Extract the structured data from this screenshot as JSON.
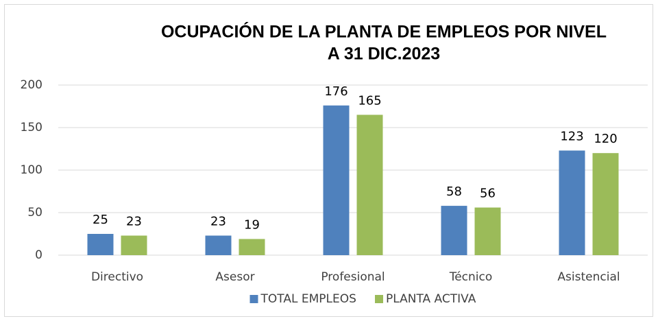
{
  "chart_data": {
    "type": "bar",
    "title": [
      "OCUPACIÓN DE LA PLANTA DE EMPLEOS POR NIVEL",
      "A 31 DIC.2023"
    ],
    "categories": [
      "Directivo",
      "Asesor",
      "Profesional",
      "Técnico",
      "Asistencial"
    ],
    "series": [
      {
        "name": "TOTAL EMPLEOS",
        "color": "#4f81bd",
        "values": [
          25,
          23,
          176,
          58,
          123
        ]
      },
      {
        "name": "PLANTA ACTIVA",
        "color": "#9bbb59",
        "values": [
          23,
          19,
          165,
          56,
          120
        ]
      }
    ],
    "ylim": [
      0,
      200
    ],
    "yticks": [
      0,
      50,
      100,
      150,
      200
    ],
    "grid": true,
    "legend": "bottom"
  }
}
